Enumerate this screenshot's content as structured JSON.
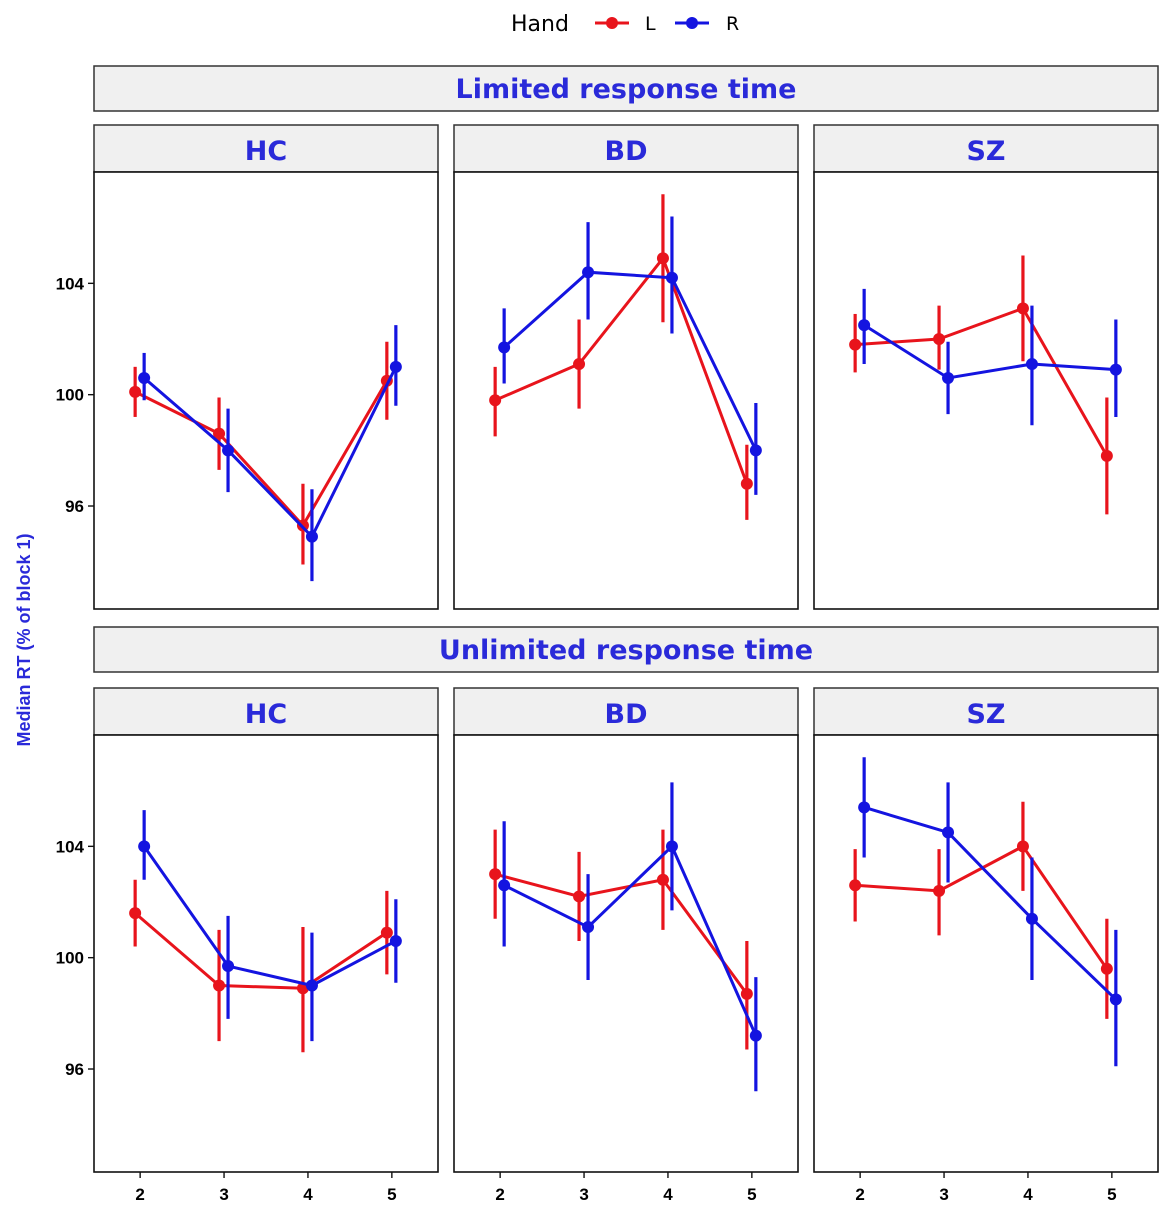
{
  "chart_data": {
    "type": "line",
    "ylabel": "Median RT (% of block 1)",
    "xlabel": "",
    "x": [
      2,
      3,
      4,
      5
    ],
    "y_ticks": [
      96,
      100,
      104
    ],
    "ylim": [
      92.3,
      108.0
    ],
    "legend": {
      "title": "Hand",
      "position": "top",
      "items": [
        {
          "name": "L",
          "color": "#e8141c"
        },
        {
          "name": "R",
          "color": "#1414e0"
        }
      ]
    },
    "rows": [
      {
        "title": "Limited response time",
        "panels": [
          {
            "group": "HC",
            "series": [
              {
                "name": "L",
                "values": [
                  100.1,
                  98.6,
                  95.3,
                  100.5
                ],
                "lower": [
                  99.2,
                  97.3,
                  93.9,
                  99.1
                ],
                "upper": [
                  101.0,
                  99.9,
                  96.8,
                  101.9
                ]
              },
              {
                "name": "R",
                "values": [
                  100.6,
                  98.0,
                  94.9,
                  101.0
                ],
                "lower": [
                  99.8,
                  96.5,
                  93.3,
                  99.6
                ],
                "upper": [
                  101.5,
                  99.5,
                  96.6,
                  102.5
                ]
              }
            ]
          },
          {
            "group": "BD",
            "series": [
              {
                "name": "L",
                "values": [
                  99.8,
                  101.1,
                  104.9,
                  96.8
                ],
                "lower": [
                  98.5,
                  99.5,
                  102.6,
                  95.5
                ],
                "upper": [
                  101.0,
                  102.7,
                  107.2,
                  98.2
                ]
              },
              {
                "name": "R",
                "values": [
                  101.7,
                  104.4,
                  104.2,
                  98.0
                ],
                "lower": [
                  100.4,
                  102.7,
                  102.2,
                  96.4
                ],
                "upper": [
                  103.1,
                  106.2,
                  106.4,
                  99.7
                ]
              }
            ]
          },
          {
            "group": "SZ",
            "series": [
              {
                "name": "L",
                "values": [
                  101.8,
                  102.0,
                  103.1,
                  97.8
                ],
                "lower": [
                  100.8,
                  100.9,
                  101.2,
                  95.7
                ],
                "upper": [
                  102.9,
                  103.2,
                  105.0,
                  99.9
                ]
              },
              {
                "name": "R",
                "values": [
                  102.5,
                  100.6,
                  101.1,
                  100.9
                ],
                "lower": [
                  101.1,
                  99.3,
                  98.9,
                  99.2
                ],
                "upper": [
                  103.8,
                  101.9,
                  103.2,
                  102.7
                ]
              }
            ]
          }
        ]
      },
      {
        "title": "Unlimited response time",
        "panels": [
          {
            "group": "HC",
            "series": [
              {
                "name": "L",
                "values": [
                  101.6,
                  99.0,
                  98.9,
                  100.9
                ],
                "lower": [
                  100.4,
                  97.0,
                  96.6,
                  99.4
                ],
                "upper": [
                  102.8,
                  101.0,
                  101.1,
                  102.4
                ]
              },
              {
                "name": "R",
                "values": [
                  104.0,
                  99.7,
                  99.0,
                  100.6
                ],
                "lower": [
                  102.8,
                  97.8,
                  97.0,
                  99.1
                ],
                "upper": [
                  105.3,
                  101.5,
                  100.9,
                  102.1
                ]
              }
            ]
          },
          {
            "group": "BD",
            "series": [
              {
                "name": "L",
                "values": [
                  103.0,
                  102.2,
                  102.8,
                  98.7
                ],
                "lower": [
                  101.4,
                  100.6,
                  101.0,
                  96.7
                ],
                "upper": [
                  104.6,
                  103.8,
                  104.6,
                  100.6
                ]
              },
              {
                "name": "R",
                "values": [
                  102.6,
                  101.1,
                  104.0,
                  97.2
                ],
                "lower": [
                  100.4,
                  99.2,
                  101.7,
                  95.2
                ],
                "upper": [
                  104.9,
                  103.0,
                  106.3,
                  99.3
                ]
              }
            ]
          },
          {
            "group": "SZ",
            "series": [
              {
                "name": "L",
                "values": [
                  102.6,
                  102.4,
                  104.0,
                  99.6
                ],
                "lower": [
                  101.3,
                  100.8,
                  102.4,
                  97.8
                ],
                "upper": [
                  103.9,
                  103.9,
                  105.6,
                  101.4
                ]
              },
              {
                "name": "R",
                "values": [
                  105.4,
                  104.5,
                  101.4,
                  98.5
                ],
                "lower": [
                  103.6,
                  102.7,
                  99.2,
                  96.1
                ],
                "upper": [
                  107.2,
                  106.3,
                  103.6,
                  101.0
                ]
              }
            ]
          }
        ]
      }
    ]
  }
}
